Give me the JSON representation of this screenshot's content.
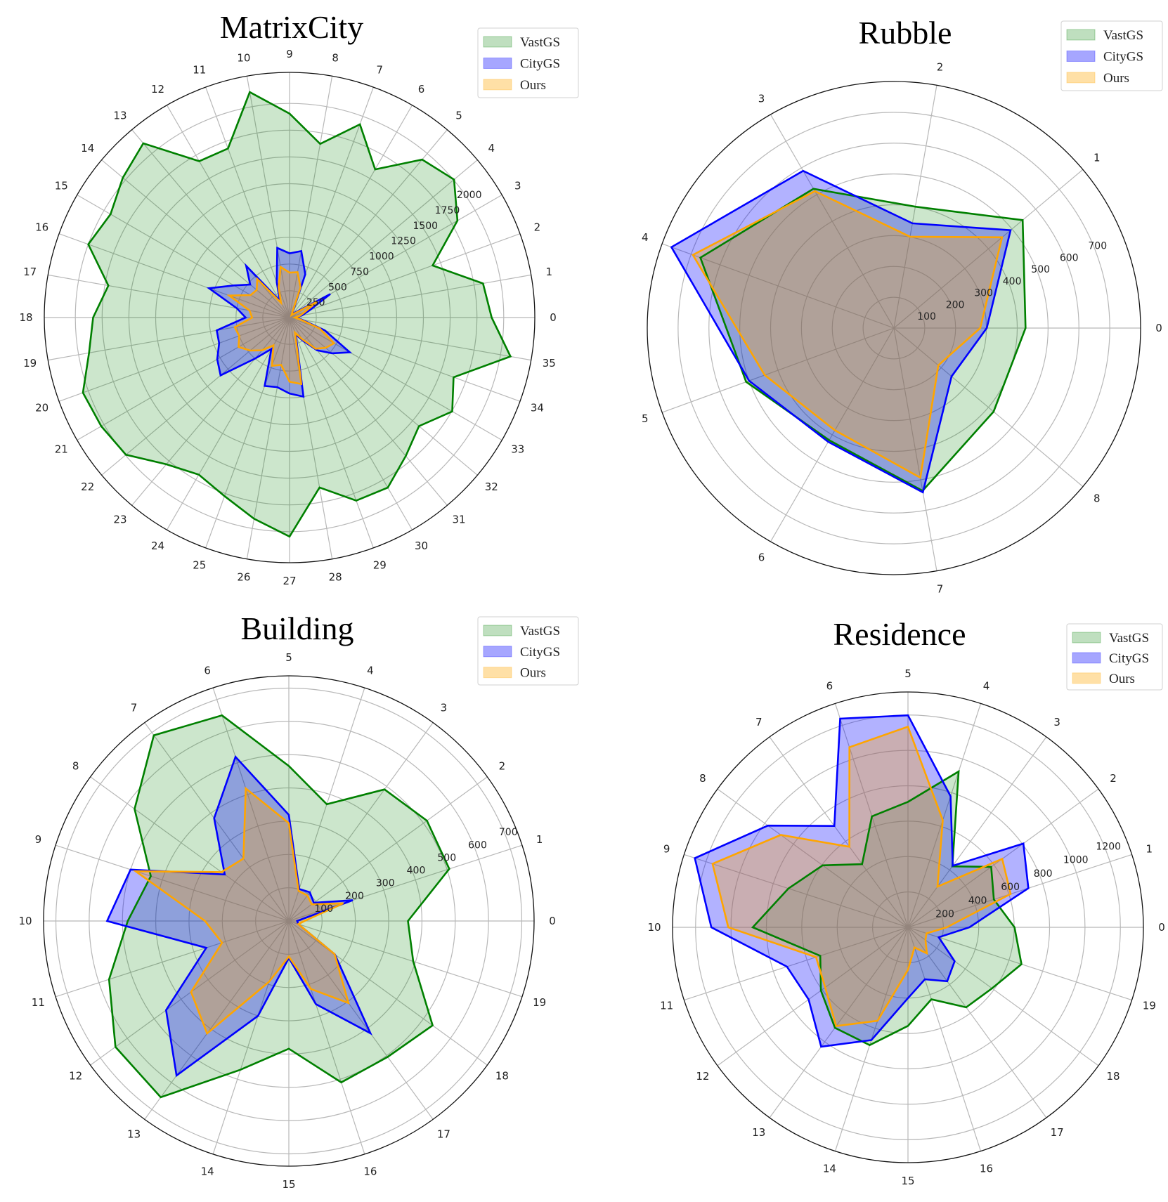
{
  "legend": [
    "VastGS",
    "CityGS",
    "Ours"
  ],
  "colors": {
    "VastGS": "#008000",
    "CityGS": "#0000ff",
    "Ours": "#ffa500"
  },
  "chart_data": [
    {
      "type": "radar",
      "title": "MatrixCity",
      "categories": [
        "0",
        "1",
        "2",
        "3",
        "4",
        "5",
        "6",
        "7",
        "8",
        "9",
        "10",
        "11",
        "12",
        "13",
        "14",
        "15",
        "16",
        "17",
        "18",
        "19",
        "20",
        "21",
        "22",
        "23",
        "24",
        "25",
        "26",
        "27",
        "28",
        "29",
        "30",
        "31",
        "32",
        "33",
        "34",
        "35"
      ],
      "rticks": [
        "250",
        "500",
        "750",
        "1000",
        "1250",
        "1500",
        "1750",
        "2000"
      ],
      "rlim": [
        0,
        2290
      ],
      "legend_position": "top-right",
      "series": [
        {
          "name": "VastGS",
          "values": [
            1887,
            1834,
            1422,
            1810,
            2005,
            1926,
            1598,
            1920,
            1647,
            1905,
            2138,
            1680,
            1686,
            2124,
            2032,
            1930,
            2000,
            1718,
            1834,
            1901,
            2053,
            2030,
            1994,
            1789,
            1694,
            1775,
            1908,
            2046,
            1612,
            1820,
            1834,
            1688,
            1578,
            1754,
            1630,
            2095
          ]
        },
        {
          "name": "CityGS",
          "values": [
            60,
            120,
            200,
            440,
            80,
            40,
            60,
            430,
            630,
            600,
            660,
            350,
            180,
            630,
            480,
            600,
            800,
            500,
            410,
            690,
            700,
            780,
            840,
            500,
            340,
            680,
            660,
            710,
            750,
            170,
            250,
            400,
            520,
            650,
            350,
            120
          ]
        },
        {
          "name": "Ours",
          "values": [
            50,
            100,
            150,
            300,
            60,
            30,
            50,
            300,
            430,
            420,
            480,
            300,
            160,
            470,
            400,
            420,
            600,
            380,
            350,
            520,
            500,
            550,
            480,
            400,
            300,
            480,
            450,
            600,
            630,
            150,
            230,
            380,
            440,
            480,
            300,
            100
          ]
        }
      ]
    },
    {
      "type": "radar",
      "title": "Rubble",
      "categories": [
        "0",
        "1",
        "2",
        "3",
        "4",
        "5",
        "6",
        "7",
        "8"
      ],
      "rticks": [
        "100",
        "200",
        "300",
        "400",
        "500",
        "600",
        "700"
      ],
      "rlim": [
        0,
        800
      ],
      "legend_position": "top-right",
      "series": [
        {
          "name": "VastGS",
          "values": [
            427,
            545,
            400,
            522,
            668,
            510,
            420,
            536,
            422
          ]
        },
        {
          "name": "CityGS",
          "values": [
            301,
            494,
            345,
            589,
            768,
            500,
            426,
            541,
            244
          ]
        },
        {
          "name": "Ours",
          "values": [
            280,
            458,
            301,
            513,
            694,
            446,
            383,
            493,
            188
          ]
        }
      ]
    },
    {
      "type": "radar",
      "title": "Building",
      "categories": [
        "0",
        "1",
        "2",
        "3",
        "4",
        "5",
        "6",
        "7",
        "8",
        "9",
        "10",
        "11",
        "12",
        "13",
        "14",
        "15",
        "16",
        "17",
        "18",
        "19"
      ],
      "rticks": [
        "100",
        "200",
        "300",
        "400",
        "500",
        "600",
        "700"
      ],
      "rlim": [
        0,
        737
      ],
      "legend_position": "top-right",
      "series": [
        {
          "name": "VastGS",
          "values": [
            358,
            507,
            513,
            489,
            369,
            466,
            650,
            690,
            573,
            436,
            484,
            568,
            644,
            655,
            470,
            384,
            510,
            505,
            534,
            393
          ]
        },
        {
          "name": "CityGS",
          "values": [
            25,
            202,
            93,
            107,
            101,
            319,
            519,
            382,
            238,
            500,
            546,
            261,
            456,
            574,
            300,
            111,
            263,
            417,
            171,
            30
          ]
        },
        {
          "name": "Ours",
          "values": [
            47,
            172,
            85,
            95,
            95,
            294,
            419,
            232,
            250,
            484,
            252,
            211,
            363,
            418,
            192,
            107,
            215,
            305,
            170,
            30
          ]
        }
      ]
    },
    {
      "type": "radar",
      "title": "Residence",
      "categories": [
        "0",
        "1",
        "2",
        "3",
        "4",
        "5",
        "6",
        "7",
        "8",
        "9",
        "10",
        "11",
        "12",
        "13",
        "14",
        "15",
        "16",
        "17",
        "18",
        "19"
      ],
      "rticks": [
        "200",
        "400",
        "600",
        "800",
        "1000",
        "1200"
      ],
      "rlim": [
        0,
        1330
      ],
      "legend_position": "top-right",
      "series": [
        {
          "name": "VastGS",
          "values": [
            602,
            510,
            581,
            426,
            926,
            709,
            659,
            441,
            596,
            710,
            877,
            521,
            608,
            702,
            700,
            557,
            428,
            559,
            587,
            674
          ]
        },
        {
          "name": "CityGS",
          "values": [
            347,
            715,
            806,
            430,
            779,
            1198,
            1240,
            708,
            978,
            1266,
            1111,
            719,
            694,
            834,
            670,
            400,
            309,
            377,
            326,
            183
          ]
        },
        {
          "name": "Ours",
          "values": [
            219,
            610,
            658,
            284,
            636,
            1134,
            1070,
            563,
            888,
            1161,
            1015,
            546,
            578,
            690,
            555,
            240,
            120,
            182,
            122,
            110
          ]
        }
      ]
    }
  ]
}
